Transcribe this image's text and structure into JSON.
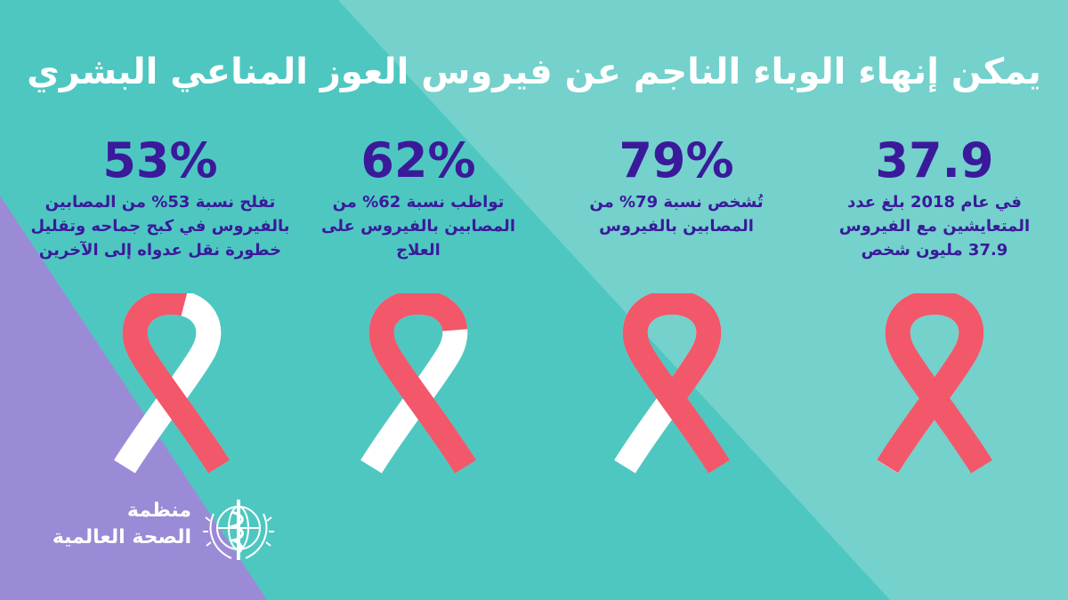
{
  "title": "يمكن إنهاء الوباء الناجم عن فيروس العوز المناعي البشري",
  "colors": {
    "background_light": "#74d1cc",
    "background_dark": "#4ec7c1",
    "background_purple": "#9b8bd7",
    "text": "#3a1a9a",
    "ribbon_red": "#f2576a",
    "ribbon_white": "#ffffff"
  },
  "stats": [
    {
      "value": "37.9",
      "description": [
        "في عام 2018 بلغ عدد",
        "المتعايشين مع الفيروس",
        "37.9 مليون شخص"
      ],
      "ribbon_fill_percent": 100
    },
    {
      "value": "79%",
      "description": [
        "تُشخص نسبة 79% من",
        "المصابين بالفيروس"
      ],
      "ribbon_fill_percent": 79
    },
    {
      "value": "62%",
      "description": [
        "تواظب نسبة 62% من",
        "المصابين بالفيروس على",
        "العلاج"
      ],
      "ribbon_fill_percent": 62
    },
    {
      "value": "53%",
      "description": [
        "تفلح نسبة 53% من المصابين",
        "بالفيروس في كبح جماحه وتقليل",
        "خطورة نقل عدواه إلى الآخرين"
      ],
      "ribbon_fill_percent": 53
    }
  ],
  "logo": {
    "line1": "منظمة",
    "line2": "الصحة العالمية",
    "icon": "who-emblem-icon"
  }
}
